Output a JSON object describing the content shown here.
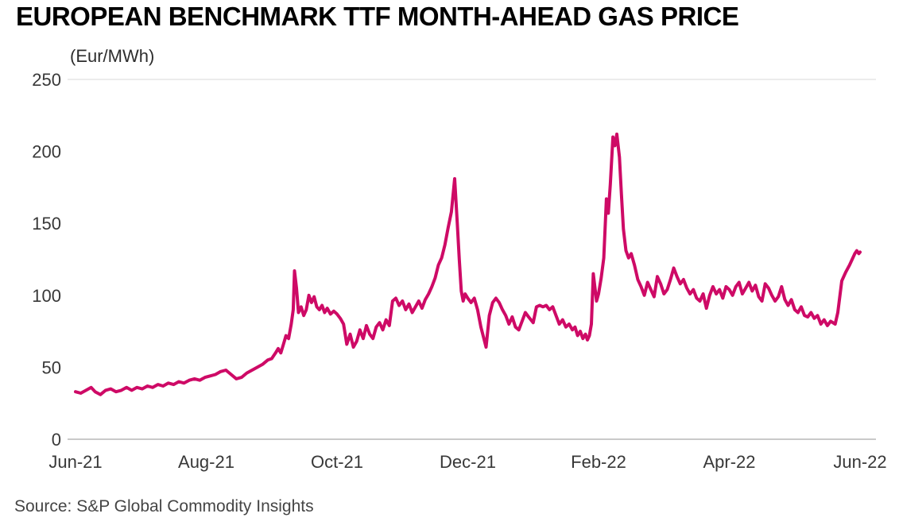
{
  "header": {
    "title": "EUROPEAN BENCHMARK TTF MONTH-AHEAD GAS PRICE",
    "units_label": "(Eur/MWh)"
  },
  "footer": {
    "source": "Source: S&P Global Commodity Insights"
  },
  "colors": {
    "line": "#CE0A66",
    "axis_line": "#c9c9c9",
    "tick_text": "#383838"
  },
  "chart_data": {
    "type": "line",
    "title": "EUROPEAN BENCHMARK TTF MONTH-AHEAD GAS PRICE",
    "xlabel": "",
    "ylabel": "(Eur/MWh)",
    "legend": "none",
    "grid": "horizontal rules at 0 (axis) and 250 (top) only",
    "x_unit": "months since Jun-2021",
    "xlim": [
      0,
      12
    ],
    "ylim": [
      0,
      250
    ],
    "x_ticks": [
      {
        "x": 0,
        "label": "Jun-21"
      },
      {
        "x": 2,
        "label": "Aug-21"
      },
      {
        "x": 4,
        "label": "Oct-21"
      },
      {
        "x": 6,
        "label": "Dec-21"
      },
      {
        "x": 8,
        "label": "Feb-22"
      },
      {
        "x": 10,
        "label": "Apr-22"
      },
      {
        "x": 12,
        "label": "Jun-22"
      }
    ],
    "y_ticks": [
      {
        "value": 0,
        "label": "0"
      },
      {
        "value": 50,
        "label": "50"
      },
      {
        "value": 100,
        "label": "100"
      },
      {
        "value": 150,
        "label": "150"
      },
      {
        "value": 200,
        "label": "200"
      },
      {
        "value": 250,
        "label": "250"
      }
    ],
    "gridlines": [
      {
        "value": 0,
        "style": "axis"
      },
      {
        "value": 250,
        "style": "light"
      }
    ],
    "series": [
      {
        "name": "TTF month-ahead gas price",
        "color": "#CE0A66",
        "points": [
          [
            0.0,
            33
          ],
          [
            0.08,
            32
          ],
          [
            0.16,
            34
          ],
          [
            0.24,
            36
          ],
          [
            0.3,
            33
          ],
          [
            0.38,
            31
          ],
          [
            0.46,
            34
          ],
          [
            0.54,
            35
          ],
          [
            0.62,
            33
          ],
          [
            0.7,
            34
          ],
          [
            0.78,
            36
          ],
          [
            0.86,
            34
          ],
          [
            0.94,
            36
          ],
          [
            1.02,
            35
          ],
          [
            1.1,
            37
          ],
          [
            1.18,
            36
          ],
          [
            1.26,
            38
          ],
          [
            1.34,
            37
          ],
          [
            1.42,
            39
          ],
          [
            1.5,
            38
          ],
          [
            1.58,
            40
          ],
          [
            1.66,
            39
          ],
          [
            1.74,
            41
          ],
          [
            1.82,
            42
          ],
          [
            1.9,
            41
          ],
          [
            1.98,
            43
          ],
          [
            2.06,
            44
          ],
          [
            2.14,
            45
          ],
          [
            2.22,
            47
          ],
          [
            2.3,
            48
          ],
          [
            2.38,
            45
          ],
          [
            2.46,
            42
          ],
          [
            2.54,
            43
          ],
          [
            2.62,
            46
          ],
          [
            2.7,
            48
          ],
          [
            2.78,
            50
          ],
          [
            2.86,
            52
          ],
          [
            2.94,
            55
          ],
          [
            3.0,
            56
          ],
          [
            3.06,
            60
          ],
          [
            3.1,
            63
          ],
          [
            3.14,
            60
          ],
          [
            3.18,
            66
          ],
          [
            3.22,
            72
          ],
          [
            3.26,
            70
          ],
          [
            3.3,
            80
          ],
          [
            3.33,
            90
          ],
          [
            3.35,
            117
          ],
          [
            3.38,
            105
          ],
          [
            3.41,
            88
          ],
          [
            3.45,
            92
          ],
          [
            3.49,
            86
          ],
          [
            3.53,
            90
          ],
          [
            3.57,
            100
          ],
          [
            3.61,
            95
          ],
          [
            3.65,
            99
          ],
          [
            3.69,
            92
          ],
          [
            3.73,
            90
          ],
          [
            3.77,
            93
          ],
          [
            3.81,
            88
          ],
          [
            3.85,
            91
          ],
          [
            3.9,
            87
          ],
          [
            3.95,
            89
          ],
          [
            4.0,
            87
          ],
          [
            4.05,
            84
          ],
          [
            4.1,
            80
          ],
          [
            4.15,
            66
          ],
          [
            4.2,
            73
          ],
          [
            4.25,
            64
          ],
          [
            4.3,
            68
          ],
          [
            4.35,
            76
          ],
          [
            4.4,
            70
          ],
          [
            4.45,
            79
          ],
          [
            4.5,
            73
          ],
          [
            4.55,
            70
          ],
          [
            4.6,
            78
          ],
          [
            4.65,
            81
          ],
          [
            4.7,
            76
          ],
          [
            4.75,
            83
          ],
          [
            4.8,
            79
          ],
          [
            4.85,
            96
          ],
          [
            4.9,
            98
          ],
          [
            4.95,
            93
          ],
          [
            5.0,
            96
          ],
          [
            5.05,
            90
          ],
          [
            5.1,
            94
          ],
          [
            5.15,
            88
          ],
          [
            5.2,
            92
          ],
          [
            5.25,
            96
          ],
          [
            5.3,
            91
          ],
          [
            5.35,
            97
          ],
          [
            5.4,
            101
          ],
          [
            5.45,
            106
          ],
          [
            5.5,
            112
          ],
          [
            5.55,
            121
          ],
          [
            5.6,
            126
          ],
          [
            5.65,
            135
          ],
          [
            5.7,
            147
          ],
          [
            5.75,
            158
          ],
          [
            5.8,
            181
          ],
          [
            5.84,
            150
          ],
          [
            5.87,
            125
          ],
          [
            5.9,
            103
          ],
          [
            5.93,
            96
          ],
          [
            5.96,
            101
          ],
          [
            6.0,
            98
          ],
          [
            6.05,
            95
          ],
          [
            6.1,
            98
          ],
          [
            6.15,
            90
          ],
          [
            6.2,
            78
          ],
          [
            6.28,
            64
          ],
          [
            6.33,
            86
          ],
          [
            6.38,
            95
          ],
          [
            6.43,
            98
          ],
          [
            6.48,
            95
          ],
          [
            6.53,
            90
          ],
          [
            6.58,
            86
          ],
          [
            6.63,
            80
          ],
          [
            6.68,
            85
          ],
          [
            6.73,
            78
          ],
          [
            6.78,
            76
          ],
          [
            6.83,
            82
          ],
          [
            6.88,
            88
          ],
          [
            6.93,
            85
          ],
          [
            7.0,
            81
          ],
          [
            7.05,
            92
          ],
          [
            7.1,
            93
          ],
          [
            7.15,
            92
          ],
          [
            7.2,
            93
          ],
          [
            7.25,
            90
          ],
          [
            7.3,
            92
          ],
          [
            7.35,
            86
          ],
          [
            7.4,
            80
          ],
          [
            7.45,
            83
          ],
          [
            7.5,
            78
          ],
          [
            7.55,
            80
          ],
          [
            7.6,
            76
          ],
          [
            7.64,
            78
          ],
          [
            7.68,
            72
          ],
          [
            7.72,
            75
          ],
          [
            7.76,
            70
          ],
          [
            7.8,
            73
          ],
          [
            7.83,
            69
          ],
          [
            7.86,
            72
          ],
          [
            7.89,
            80
          ],
          [
            7.92,
            115
          ],
          [
            7.94,
            107
          ],
          [
            7.97,
            96
          ],
          [
            8.0,
            101
          ],
          [
            8.04,
            112
          ],
          [
            8.08,
            126
          ],
          [
            8.12,
            167
          ],
          [
            8.15,
            157
          ],
          [
            8.18,
            177
          ],
          [
            8.22,
            210
          ],
          [
            8.25,
            204
          ],
          [
            8.28,
            212
          ],
          [
            8.32,
            196
          ],
          [
            8.35,
            170
          ],
          [
            8.38,
            146
          ],
          [
            8.42,
            131
          ],
          [
            8.46,
            126
          ],
          [
            8.5,
            129
          ],
          [
            8.55,
            121
          ],
          [
            8.6,
            111
          ],
          [
            8.65,
            106
          ],
          [
            8.7,
            100
          ],
          [
            8.75,
            109
          ],
          [
            8.8,
            104
          ],
          [
            8.85,
            99
          ],
          [
            8.9,
            113
          ],
          [
            8.95,
            108
          ],
          [
            9.0,
            101
          ],
          [
            9.05,
            104
          ],
          [
            9.1,
            111
          ],
          [
            9.15,
            119
          ],
          [
            9.2,
            113
          ],
          [
            9.25,
            108
          ],
          [
            9.3,
            111
          ],
          [
            9.35,
            105
          ],
          [
            9.4,
            101
          ],
          [
            9.45,
            104
          ],
          [
            9.5,
            98
          ],
          [
            9.55,
            96
          ],
          [
            9.6,
            101
          ],
          [
            9.65,
            91
          ],
          [
            9.7,
            100
          ],
          [
            9.75,
            106
          ],
          [
            9.8,
            101
          ],
          [
            9.85,
            104
          ],
          [
            9.9,
            98
          ],
          [
            9.95,
            106
          ],
          [
            10.0,
            104
          ],
          [
            10.05,
            100
          ],
          [
            10.1,
            106
          ],
          [
            10.15,
            109
          ],
          [
            10.2,
            101
          ],
          [
            10.25,
            105
          ],
          [
            10.3,
            109
          ],
          [
            10.35,
            103
          ],
          [
            10.4,
            107
          ],
          [
            10.45,
            99
          ],
          [
            10.5,
            96
          ],
          [
            10.55,
            108
          ],
          [
            10.6,
            105
          ],
          [
            10.65,
            100
          ],
          [
            10.7,
            96
          ],
          [
            10.75,
            99
          ],
          [
            10.8,
            106
          ],
          [
            10.85,
            97
          ],
          [
            10.9,
            93
          ],
          [
            10.95,
            97
          ],
          [
            11.0,
            90
          ],
          [
            11.05,
            88
          ],
          [
            11.1,
            92
          ],
          [
            11.15,
            86
          ],
          [
            11.2,
            85
          ],
          [
            11.25,
            88
          ],
          [
            11.3,
            84
          ],
          [
            11.35,
            86
          ],
          [
            11.4,
            80
          ],
          [
            11.45,
            83
          ],
          [
            11.5,
            79
          ],
          [
            11.55,
            82
          ],
          [
            11.62,
            80
          ],
          [
            11.66,
            88
          ],
          [
            11.72,
            110
          ],
          [
            11.78,
            116
          ],
          [
            11.84,
            121
          ],
          [
            11.88,
            125
          ],
          [
            11.92,
            129
          ],
          [
            11.95,
            131
          ],
          [
            11.98,
            129
          ],
          [
            12.0,
            130
          ]
        ]
      }
    ]
  }
}
